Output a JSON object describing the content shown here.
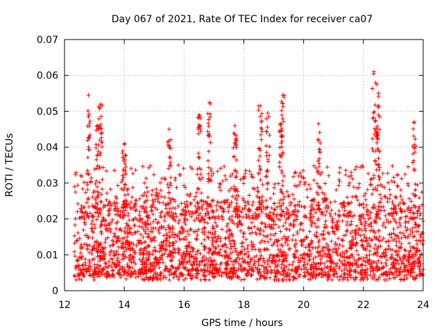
{
  "chart_data": {
    "type": "scatter",
    "title": "Day 067 of 2021, Rate Of TEC Index for receiver ca07",
    "xlabel": "GPS time / hours",
    "ylabel": "ROTI / TECUs",
    "xlim": [
      12,
      24
    ],
    "ylim": [
      0,
      0.07
    ],
    "xticks": [
      12,
      14,
      16,
      18,
      20,
      22,
      24
    ],
    "yticks": [
      0,
      0.01,
      0.02,
      0.03,
      0.04,
      0.05,
      0.06,
      0.07
    ],
    "xtick_labels": [
      "12",
      "14",
      "16",
      "18",
      "20",
      "22",
      "24"
    ],
    "ytick_labels": [
      "0",
      "0.01",
      "0.02",
      "0.03",
      "0.04",
      "0.05",
      "0.06",
      "0.07"
    ],
    "grid": true,
    "marker": "+",
    "color": "#ff0000",
    "x_start": 12.33,
    "x_end": 24.0,
    "typical_range": [
      0.004,
      0.025
    ],
    "peaks": [
      {
        "x": 12.8,
        "y": 0.0545
      },
      {
        "x": 13.2,
        "y": 0.052
      },
      {
        "x": 13.1,
        "y": 0.046
      },
      {
        "x": 14.0,
        "y": 0.041
      },
      {
        "x": 15.5,
        "y": 0.045
      },
      {
        "x": 16.5,
        "y": 0.049
      },
      {
        "x": 16.85,
        "y": 0.0525
      },
      {
        "x": 17.7,
        "y": 0.046
      },
      {
        "x": 18.55,
        "y": 0.0515
      },
      {
        "x": 18.8,
        "y": 0.0495
      },
      {
        "x": 19.3,
        "y": 0.0545
      },
      {
        "x": 19.25,
        "y": 0.0465
      },
      {
        "x": 20.5,
        "y": 0.0465
      },
      {
        "x": 22.35,
        "y": 0.061
      },
      {
        "x": 22.45,
        "y": 0.0575
      },
      {
        "x": 22.5,
        "y": 0.0515
      },
      {
        "x": 23.7,
        "y": 0.047
      }
    ]
  }
}
